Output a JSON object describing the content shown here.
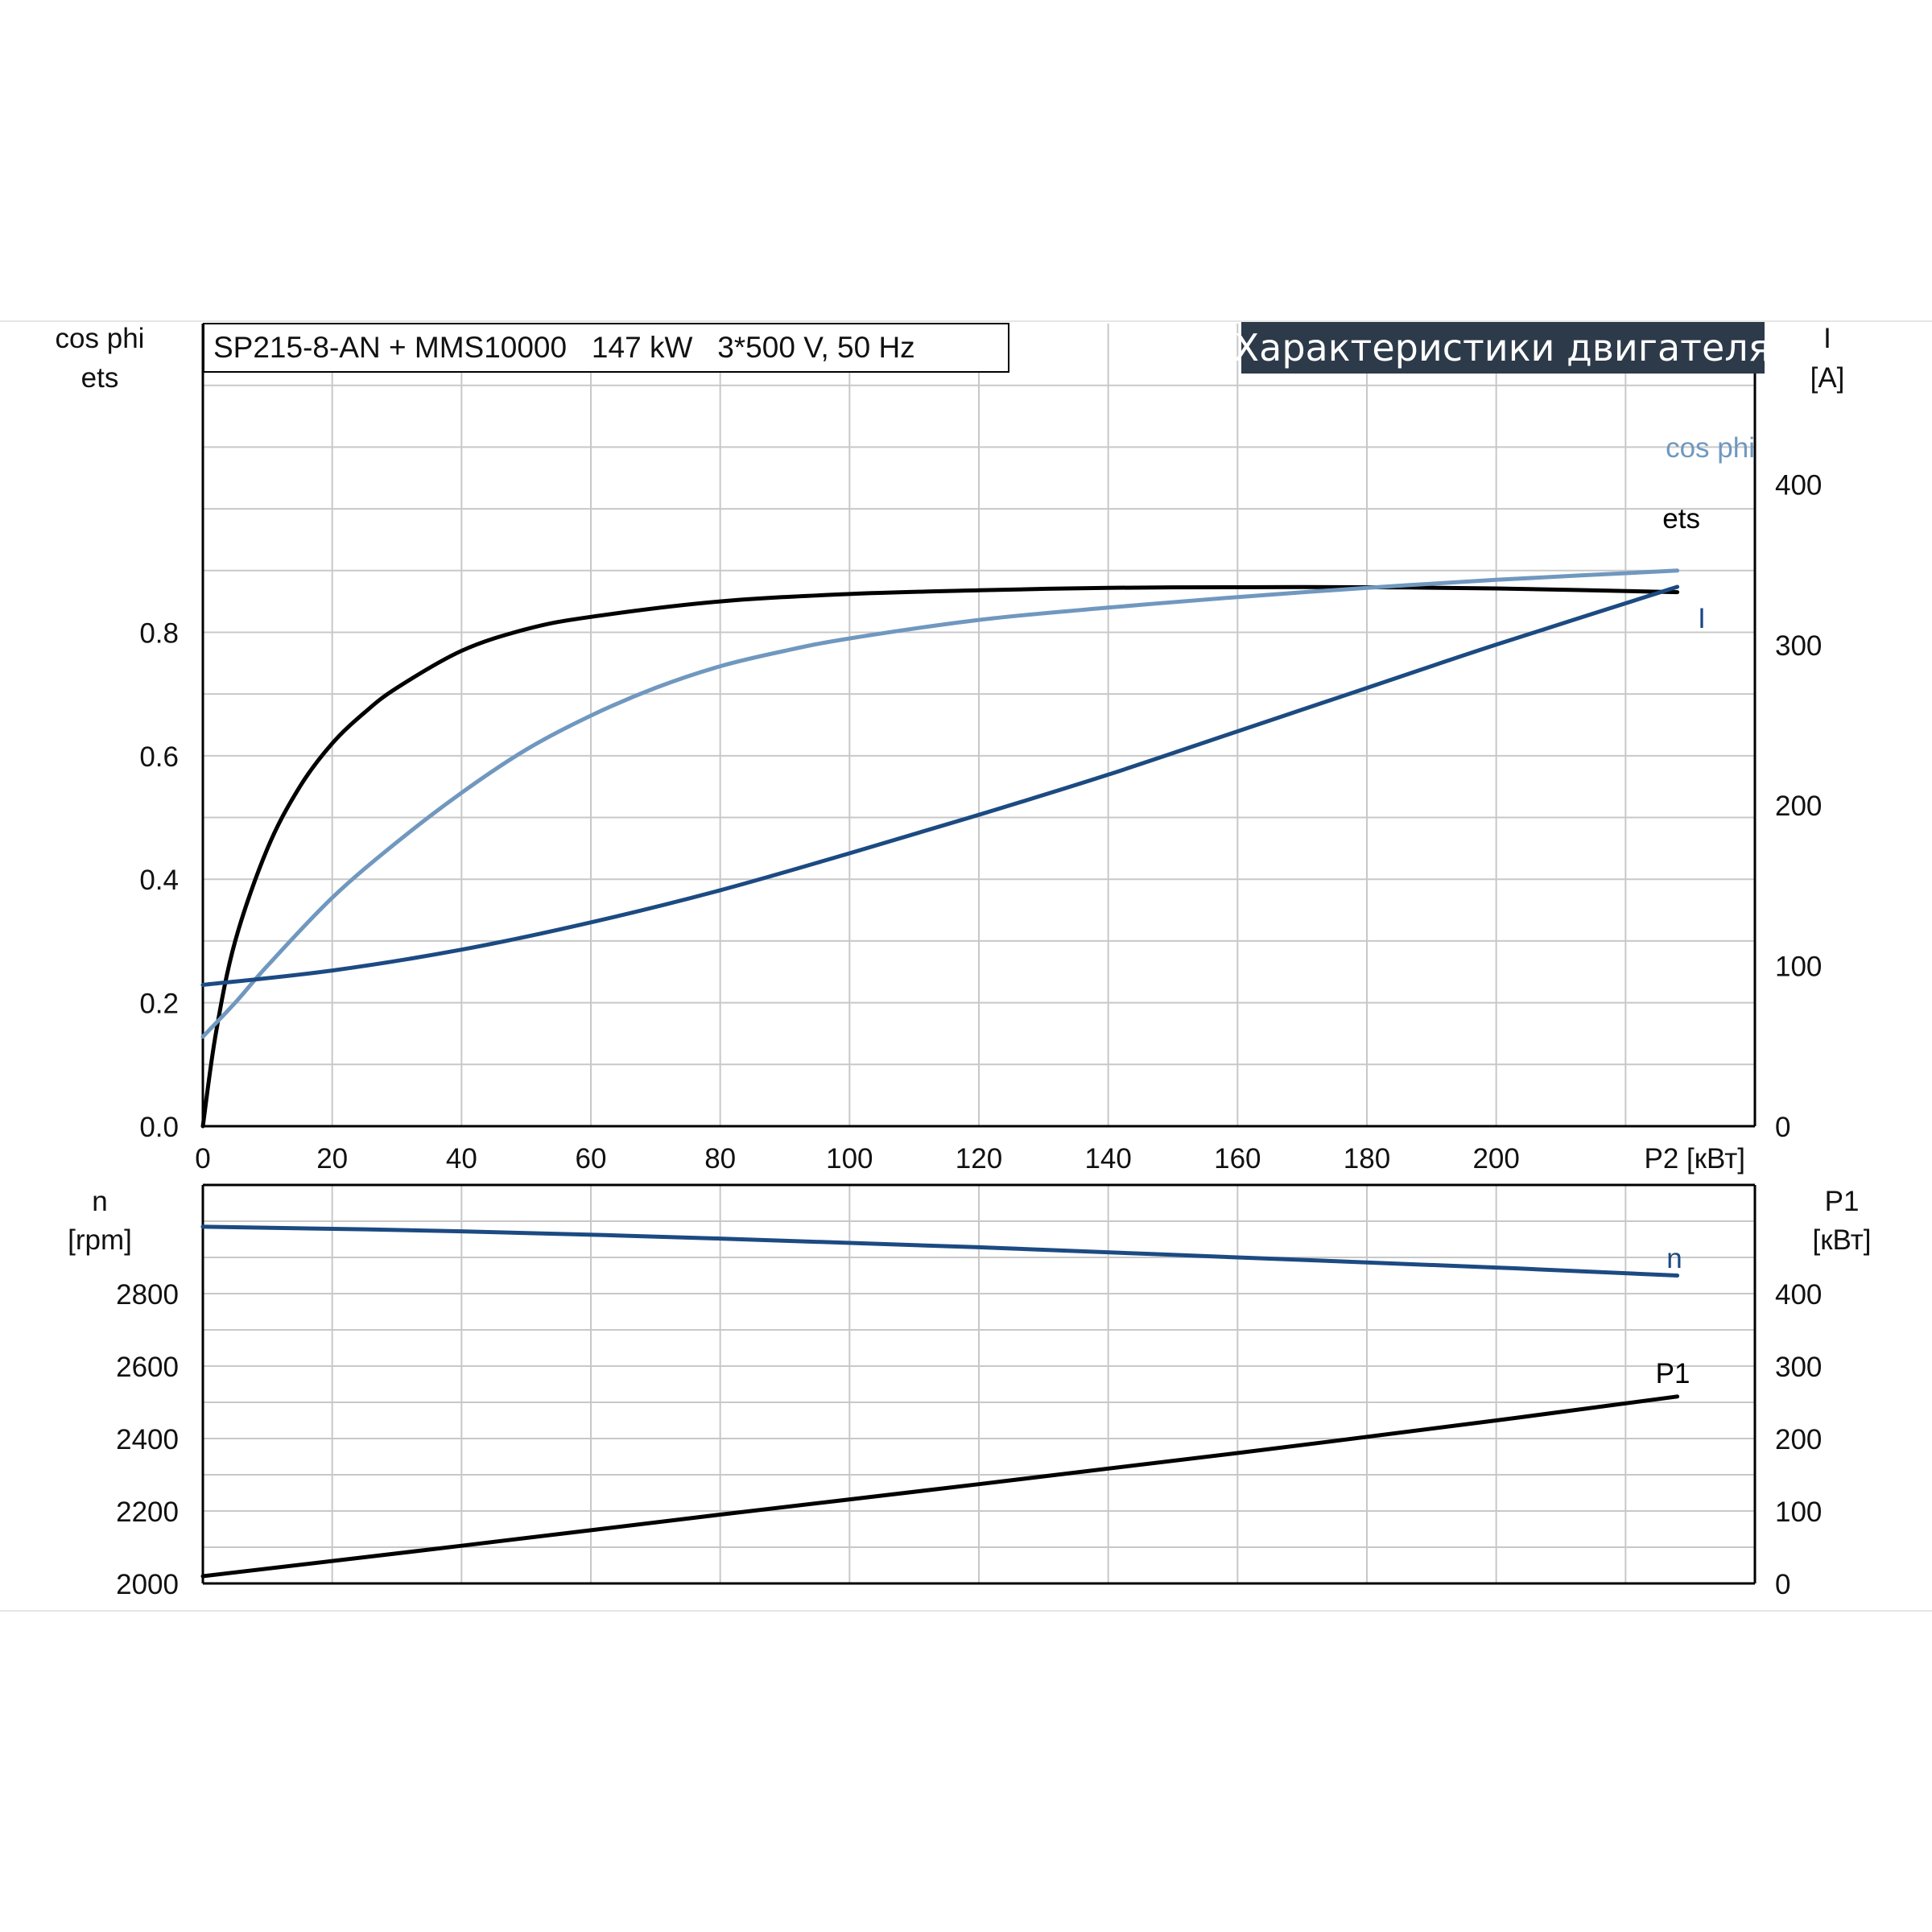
{
  "chart_data": {
    "type": "line",
    "title": "SP215-8-AN + MMS10000   147 kW   3*500 V, 50 Hz",
    "subtitle": "Характеристики двигателя",
    "x": {
      "label": "P2 [кВт]",
      "range": [
        0,
        240
      ],
      "ticks": [
        "0",
        "20",
        "40",
        "60",
        "80",
        "100",
        "120",
        "140",
        "160",
        "180",
        "200"
      ]
    },
    "upper_panel": {
      "left_axis": {
        "label_line1": "cos phi",
        "label_line2": "ets",
        "range": [
          0,
          1.3
        ],
        "ticks": [
          "0.0",
          "0.2",
          "0.4",
          "0.6",
          "0.8"
        ]
      },
      "right_axis": {
        "label_line1": "I",
        "label_line2": "[A]",
        "range": [
          0,
          500
        ],
        "ticks": [
          "0",
          "100",
          "200",
          "300",
          "400"
        ]
      },
      "series": [
        {
          "name": "ets",
          "axis": "left",
          "color": "#000000",
          "x": [
            0,
            2,
            5,
            10,
            15,
            20,
            25,
            30,
            40,
            50,
            60,
            80,
            100,
            120,
            140,
            160,
            180,
            200,
            228
          ],
          "y": [
            0.0,
            0.15,
            0.3,
            0.45,
            0.55,
            0.62,
            0.67,
            0.71,
            0.77,
            0.805,
            0.825,
            0.85,
            0.862,
            0.868,
            0.872,
            0.873,
            0.873,
            0.871,
            0.865
          ]
        },
        {
          "name": "cos phi",
          "axis": "left",
          "color": "#7098bf",
          "x": [
            0,
            5,
            10,
            20,
            30,
            40,
            50,
            60,
            70,
            80,
            90,
            100,
            120,
            140,
            160,
            180,
            200,
            228
          ],
          "y": [
            0.145,
            0.2,
            0.26,
            0.37,
            0.46,
            0.54,
            0.61,
            0.665,
            0.71,
            0.745,
            0.77,
            0.79,
            0.82,
            0.84,
            0.857,
            0.872,
            0.885,
            0.9
          ]
        },
        {
          "name": "I",
          "axis": "right",
          "color": "#1c4a82",
          "x": [
            0,
            20,
            40,
            60,
            80,
            100,
            120,
            140,
            160,
            180,
            200,
            228
          ],
          "y": [
            88,
            97,
            110,
            127,
            147,
            170,
            194,
            219,
            246,
            273,
            300,
            336
          ]
        }
      ]
    },
    "lower_panel": {
      "left_axis": {
        "label_line1": "n",
        "label_line2": "[rpm]",
        "range": [
          2000,
          3100
        ],
        "ticks": [
          "2000",
          "2200",
          "2400",
          "2600",
          "2800"
        ]
      },
      "right_axis": {
        "label_line1": "P1",
        "label_line2": "[кВт]",
        "range": [
          0,
          550
        ],
        "ticks": [
          "0",
          "100",
          "200",
          "300",
          "400"
        ]
      },
      "series": [
        {
          "name": "n",
          "axis": "left",
          "color": "#1c4a82",
          "x": [
            0,
            40,
            80,
            120,
            160,
            200,
            228
          ],
          "y": [
            2985,
            2972,
            2952,
            2928,
            2900,
            2872,
            2850
          ]
        },
        {
          "name": "P1",
          "axis": "right",
          "color": "#000000",
          "x": [
            0,
            40,
            80,
            120,
            160,
            200,
            228
          ],
          "y": [
            10,
            52,
            95,
            137,
            180,
            225,
            258
          ]
        }
      ]
    }
  }
}
